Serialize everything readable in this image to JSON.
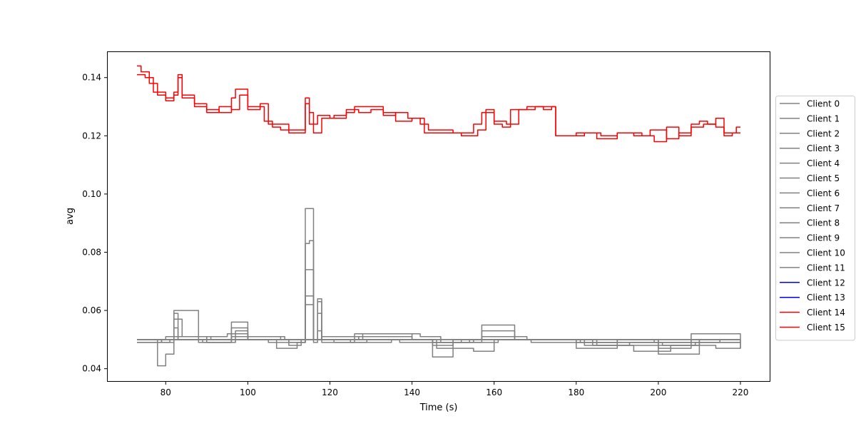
{
  "chart_data": {
    "type": "line",
    "title": "",
    "xlabel": "Time (s)",
    "ylabel": "avg",
    "xlim": [
      65.7,
      227.3
    ],
    "ylim": [
      0.0355,
      0.149
    ],
    "xticks": [
      80,
      100,
      120,
      140,
      160,
      180,
      200,
      220
    ],
    "xtick_labels": [
      "80",
      "100",
      "120",
      "140",
      "160",
      "180",
      "200",
      "220"
    ],
    "yticks": [
      0.04,
      0.06,
      0.08,
      0.1,
      0.12,
      0.14
    ],
    "ytick_labels": [
      "0.04",
      "0.06",
      "0.08",
      "0.10",
      "0.12",
      "0.14"
    ],
    "grid": false,
    "legend_position": "right-outside",
    "colors": {
      "gray": "#808080",
      "blue": "#0000ff",
      "red": "#ff0000"
    },
    "series": [
      {
        "name": "Client 0",
        "color": "#808080",
        "x": [
          73,
          78,
          79,
          82,
          83,
          90,
          96,
          100,
          110,
          113,
          114,
          115,
          116,
          117,
          118,
          125,
          135,
          145,
          150,
          157,
          160,
          170,
          180,
          190,
          200,
          210,
          220
        ],
        "y": [
          0.05,
          0.049,
          0.05,
          0.05,
          0.05,
          0.05,
          0.052,
          0.05,
          0.05,
          0.05,
          0.095,
          0.095,
          0.05,
          0.05,
          0.05,
          0.05,
          0.05,
          0.049,
          0.05,
          0.05,
          0.05,
          0.05,
          0.049,
          0.05,
          0.049,
          0.05,
          0.05
        ]
      },
      {
        "name": "Client 1",
        "color": "#808080",
        "x": [
          73,
          78,
          80,
          82,
          83,
          88,
          96,
          100,
          110,
          113,
          114,
          115,
          116,
          117,
          118,
          125,
          135,
          145,
          150,
          155,
          160,
          170,
          180,
          190,
          200,
          210,
          220
        ],
        "y": [
          0.049,
          0.041,
          0.045,
          0.06,
          0.06,
          0.049,
          0.054,
          0.05,
          0.048,
          0.049,
          0.083,
          0.084,
          0.05,
          0.064,
          0.05,
          0.049,
          0.05,
          0.044,
          0.047,
          0.046,
          0.05,
          0.05,
          0.047,
          0.048,
          0.045,
          0.049,
          0.047
        ]
      },
      {
        "name": "Client 2",
        "color": "#808080",
        "x": [
          73,
          80,
          82,
          83,
          90,
          96,
          100,
          108,
          113,
          114,
          115,
          116,
          117,
          118,
          127,
          140,
          145,
          150,
          157,
          165,
          180,
          190,
          200,
          210,
          220
        ],
        "y": [
          0.05,
          0.05,
          0.059,
          0.05,
          0.049,
          0.056,
          0.051,
          0.05,
          0.049,
          0.074,
          0.074,
          0.049,
          0.063,
          0.05,
          0.051,
          0.05,
          0.048,
          0.049,
          0.053,
          0.05,
          0.049,
          0.05,
          0.048,
          0.05,
          0.049
        ]
      },
      {
        "name": "Client 3",
        "color": "#808080",
        "x": [
          73,
          80,
          82,
          84,
          90,
          97,
          100,
          110,
          113,
          114,
          115,
          116,
          117,
          118,
          128,
          140,
          146,
          150,
          157,
          165,
          182,
          190,
          200,
          208,
          220
        ],
        "y": [
          0.05,
          0.051,
          0.057,
          0.051,
          0.05,
          0.053,
          0.05,
          0.049,
          0.05,
          0.065,
          0.065,
          0.05,
          0.059,
          0.05,
          0.052,
          0.05,
          0.047,
          0.05,
          0.055,
          0.05,
          0.048,
          0.049,
          0.047,
          0.052,
          0.05
        ]
      },
      {
        "name": "Client 4",
        "color": "#808080",
        "x": [
          73,
          79,
          82,
          83,
          90,
          95,
          100,
          107,
          112,
          114,
          115,
          116,
          117,
          118,
          126,
          142,
          147,
          152,
          157,
          168,
          184,
          194,
          203,
          214,
          220
        ],
        "y": [
          0.05,
          0.049,
          0.054,
          0.05,
          0.051,
          0.052,
          0.05,
          0.047,
          0.049,
          0.062,
          0.062,
          0.05,
          0.053,
          0.049,
          0.052,
          0.051,
          0.049,
          0.05,
          0.051,
          0.05,
          0.048,
          0.046,
          0.048,
          0.047,
          0.049
        ]
      },
      {
        "name": "Client 5",
        "color": "#808080",
        "x": [
          73,
          80,
          88,
          96,
          100,
          110,
          114,
          118,
          125,
          135,
          145,
          155,
          165,
          175,
          185,
          195,
          205,
          215,
          220
        ],
        "y": [
          0.05,
          0.05,
          0.05,
          0.051,
          0.05,
          0.05,
          0.05,
          0.05,
          0.05,
          0.05,
          0.049,
          0.05,
          0.05,
          0.05,
          0.049,
          0.049,
          0.049,
          0.05,
          0.05
        ]
      },
      {
        "name": "Client 6",
        "color": "#808080",
        "x": [
          73,
          80,
          90,
          100,
          110,
          120,
          130,
          140,
          150,
          160,
          170,
          180,
          190,
          200,
          210,
          220
        ],
        "y": [
          0.05,
          0.05,
          0.05,
          0.05,
          0.05,
          0.05,
          0.05,
          0.05,
          0.05,
          0.05,
          0.05,
          0.05,
          0.05,
          0.05,
          0.05,
          0.05
        ]
      },
      {
        "name": "Client 7",
        "color": "#808080",
        "x": [
          73,
          80,
          90,
          100,
          110,
          120,
          130,
          140,
          150,
          160,
          170,
          180,
          190,
          200,
          210,
          220
        ],
        "y": [
          0.05,
          0.05,
          0.05,
          0.05,
          0.05,
          0.05,
          0.05,
          0.05,
          0.05,
          0.05,
          0.05,
          0.05,
          0.05,
          0.05,
          0.05,
          0.05
        ]
      },
      {
        "name": "Client 8",
        "color": "#808080",
        "x": [
          73,
          81,
          89,
          97,
          105,
          113,
          121,
          129,
          137,
          145,
          153,
          161,
          169,
          177,
          185,
          193,
          201,
          209,
          220
        ],
        "y": [
          0.049,
          0.05,
          0.049,
          0.05,
          0.049,
          0.05,
          0.049,
          0.05,
          0.049,
          0.049,
          0.049,
          0.05,
          0.049,
          0.049,
          0.048,
          0.049,
          0.048,
          0.049,
          0.05
        ]
      },
      {
        "name": "Client 9",
        "color": "#808080",
        "x": [
          73,
          82,
          91,
          100,
          109,
          118,
          127,
          136,
          145,
          154,
          163,
          172,
          181,
          190,
          199,
          208,
          220
        ],
        "y": [
          0.05,
          0.051,
          0.05,
          0.051,
          0.05,
          0.051,
          0.05,
          0.05,
          0.049,
          0.05,
          0.05,
          0.05,
          0.049,
          0.05,
          0.049,
          0.05,
          0.05
        ]
      },
      {
        "name": "Client 10",
        "color": "#808080",
        "x": [
          73,
          80,
          90,
          100,
          110,
          120,
          130,
          140,
          150,
          160,
          170,
          180,
          190,
          200,
          210,
          220
        ],
        "y": [
          0.05,
          0.05,
          0.05,
          0.05,
          0.05,
          0.05,
          0.05,
          0.05,
          0.05,
          0.05,
          0.05,
          0.05,
          0.05,
          0.05,
          0.05,
          0.05
        ]
      },
      {
        "name": "Client 11",
        "color": "#808080",
        "x": [
          73,
          80,
          90,
          100,
          110,
          120,
          130,
          140,
          150,
          160,
          170,
          180,
          190,
          200,
          210,
          220
        ],
        "y": [
          0.05,
          0.05,
          0.05,
          0.05,
          0.05,
          0.05,
          0.05,
          0.05,
          0.05,
          0.05,
          0.05,
          0.05,
          0.05,
          0.05,
          0.05,
          0.05
        ]
      },
      {
        "name": "Client 12",
        "color": "#0000ff",
        "x": [],
        "y": []
      },
      {
        "name": "Client 13",
        "color": "#0000ff",
        "x": [],
        "y": []
      },
      {
        "name": "Client 14",
        "color": "#ff0000",
        "x": [
          73,
          75,
          77,
          80,
          82,
          83,
          84,
          87,
          90,
          93,
          96,
          97,
          100,
          104,
          106,
          108,
          110,
          112,
          114,
          115,
          117,
          120,
          124,
          126,
          130,
          133,
          136,
          139,
          142,
          144,
          146,
          150,
          155,
          157,
          160,
          163,
          166,
          170,
          174,
          175,
          180,
          185,
          190,
          194,
          198,
          202,
          205,
          208,
          210,
          212,
          214,
          216,
          219,
          220
        ],
        "y": [
          0.141,
          0.14,
          0.135,
          0.133,
          0.135,
          0.141,
          0.134,
          0.13,
          0.129,
          0.128,
          0.133,
          0.136,
          0.13,
          0.125,
          0.123,
          0.122,
          0.122,
          0.122,
          0.131,
          0.124,
          0.127,
          0.126,
          0.128,
          0.13,
          0.13,
          0.127,
          0.128,
          0.126,
          0.124,
          0.122,
          0.122,
          0.121,
          0.124,
          0.128,
          0.125,
          0.124,
          0.129,
          0.13,
          0.13,
          0.12,
          0.121,
          0.119,
          0.121,
          0.12,
          0.122,
          0.119,
          0.121,
          0.124,
          0.125,
          0.124,
          0.126,
          0.121,
          0.123,
          0.123
        ]
      },
      {
        "name": "Client 15",
        "color": "#ff0000",
        "x": [
          73,
          74,
          76,
          78,
          80,
          82,
          83,
          84,
          87,
          90,
          93,
          96,
          98,
          100,
          103,
          105,
          107,
          110,
          112,
          114,
          115,
          116,
          118,
          121,
          124,
          127,
          130,
          133,
          136,
          140,
          143,
          145,
          148,
          152,
          156,
          158,
          160,
          162,
          164,
          168,
          172,
          174,
          175,
          178,
          182,
          186,
          190,
          193,
          196,
          199,
          202,
          205,
          208,
          211,
          214,
          216,
          218,
          220
        ],
        "y": [
          0.144,
          0.142,
          0.138,
          0.134,
          0.132,
          0.134,
          0.14,
          0.133,
          0.131,
          0.128,
          0.13,
          0.129,
          0.134,
          0.129,
          0.131,
          0.124,
          0.124,
          0.121,
          0.121,
          0.133,
          0.128,
          0.121,
          0.126,
          0.127,
          0.129,
          0.128,
          0.129,
          0.128,
          0.125,
          0.126,
          0.121,
          0.121,
          0.121,
          0.12,
          0.122,
          0.129,
          0.124,
          0.123,
          0.129,
          0.13,
          0.129,
          0.13,
          0.12,
          0.12,
          0.121,
          0.12,
          0.121,
          0.121,
          0.12,
          0.118,
          0.123,
          0.12,
          0.123,
          0.124,
          0.123,
          0.12,
          0.121,
          0.121
        ]
      }
    ]
  }
}
